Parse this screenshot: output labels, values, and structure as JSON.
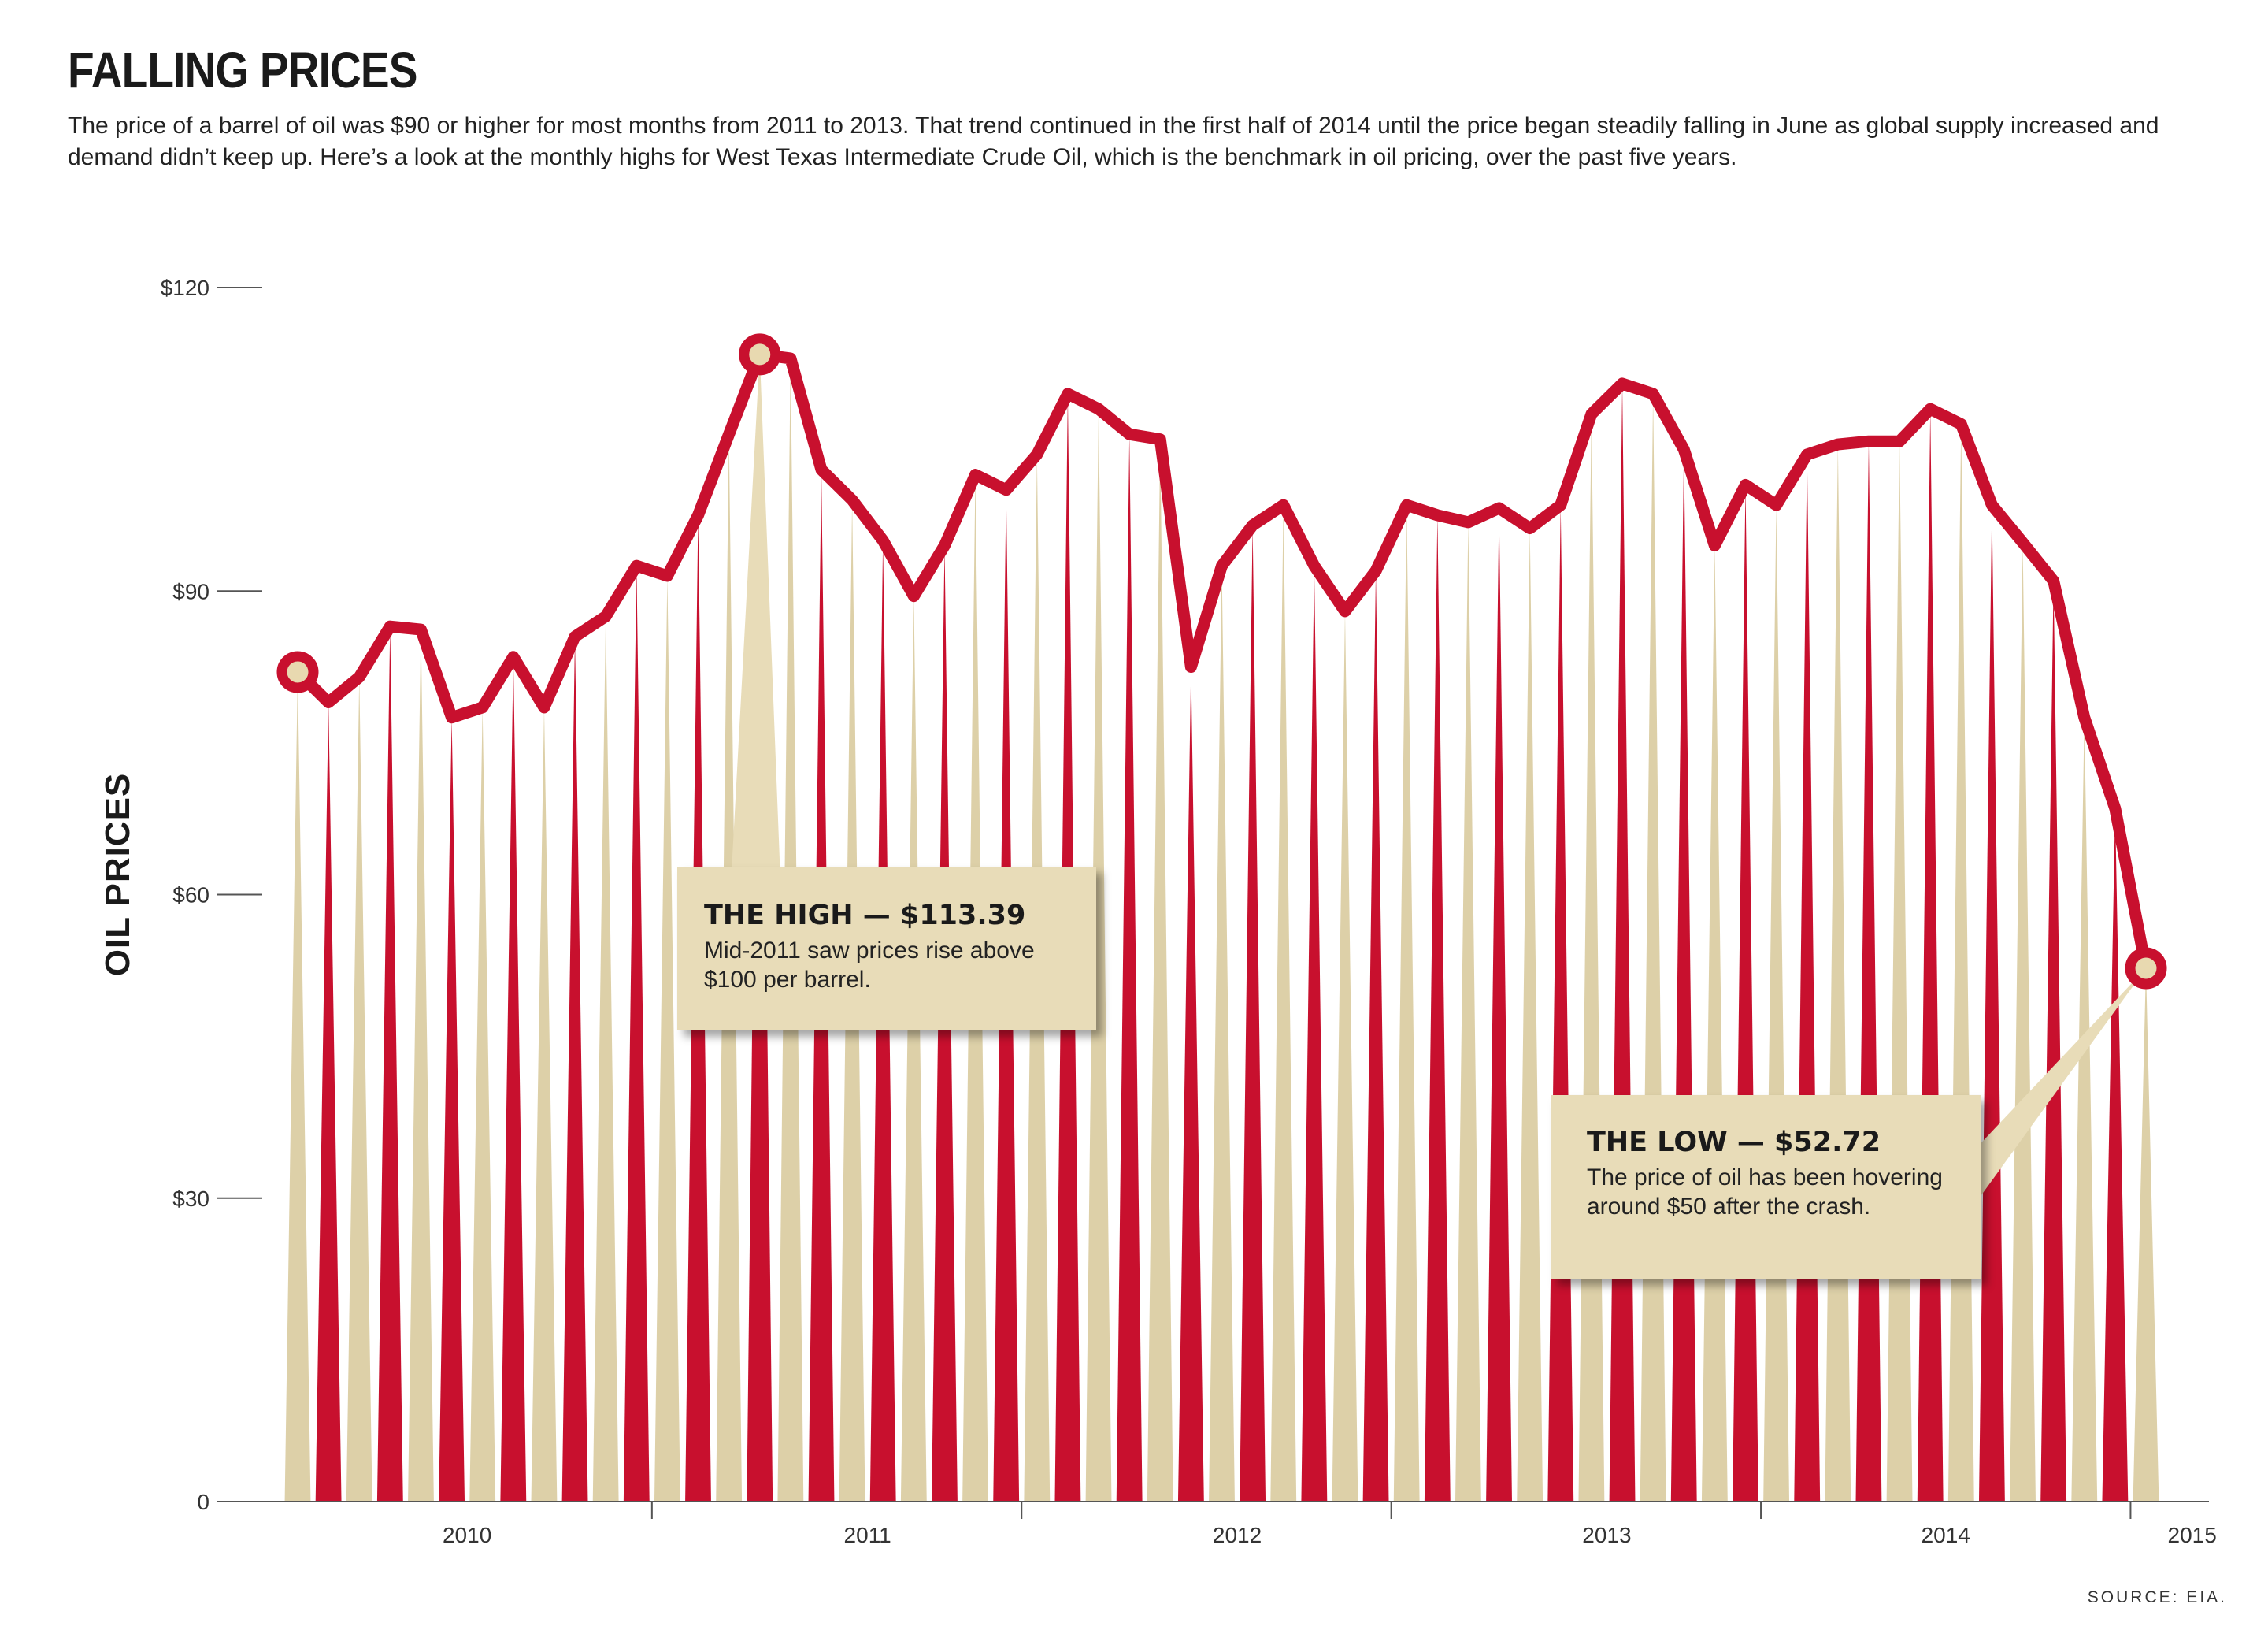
{
  "header": {
    "title": "FALLING PRICES",
    "subtitle": "The price of a barrel of oil was $90 or higher for most months from 2011 to 2013. That trend continued in the first half of 2014 until the price began steadily falling in June as global supply increased and demand didn’t keep up. Here’s a look at the monthly highs for West Texas Intermediate Crude Oil, which is the benchmark in oil pricing, over the past five years."
  },
  "chart_data": {
    "type": "line",
    "title": "FALLING PRICES",
    "ylabel": "OIL PRICES",
    "ylim": [
      0,
      120
    ],
    "y_ticks": [
      {
        "value": 0,
        "label": "0"
      },
      {
        "value": 30,
        "label": "$30"
      },
      {
        "value": 60,
        "label": "$60"
      },
      {
        "value": 90,
        "label": "$90"
      },
      {
        "value": 120,
        "label": "$120"
      }
    ],
    "x_year_labels": [
      {
        "label": "2010",
        "month_pos": 5.5
      },
      {
        "label": "2011",
        "month_pos": 18.5
      },
      {
        "label": "2012",
        "month_pos": 30.5
      },
      {
        "label": "2013",
        "month_pos": 42.5
      },
      {
        "label": "2014",
        "month_pos": 53.5
      },
      {
        "label": "2015",
        "month_pos": 61.5
      }
    ],
    "year_boundaries": [
      12,
      24,
      36,
      48,
      60
    ],
    "series": [
      {
        "values": [
          82.0,
          79.0,
          81.5,
          86.5,
          86.2,
          77.5,
          78.5,
          83.5,
          78.5,
          85.5,
          87.5,
          92.5,
          91.5,
          97.5,
          105.5,
          113.39,
          113.0,
          102.0,
          99.0,
          95.0,
          89.5,
          94.5,
          101.5,
          100.0,
          103.5,
          109.5,
          108.0,
          105.5,
          105.0,
          82.5,
          92.5,
          96.5,
          98.5,
          92.5,
          88.0,
          92.0,
          98.5,
          97.5,
          96.8,
          98.2,
          96.2,
          98.5,
          107.5,
          110.5,
          109.5,
          104.0,
          94.5,
          100.5,
          98.5,
          103.5,
          104.5,
          104.8,
          104.8,
          108.0,
          106.5,
          98.5,
          94.8,
          91.0,
          77.5,
          68.5,
          52.72
        ]
      }
    ],
    "highlights": [
      {
        "index": 0,
        "value": 82.0
      },
      {
        "index": 15,
        "value": 113.39
      },
      {
        "index": 60,
        "value": 52.72
      }
    ],
    "colors": {
      "line": "#c8102e",
      "spike_red": "#c8102e",
      "spike_tan": "#ddd0a8",
      "marker_fill": "#e8d9b0",
      "axis": "#555555"
    }
  },
  "callouts": {
    "high": {
      "heading": "THE HIGH —  $113.39",
      "body": "Mid-2011 saw prices rise above $100 per barrel."
    },
    "low": {
      "heading": "THE LOW — $52.72",
      "body": "The price of oil has been hovering around $50 after the crash."
    }
  },
  "footer": {
    "source": "SOURCE: EIA."
  }
}
